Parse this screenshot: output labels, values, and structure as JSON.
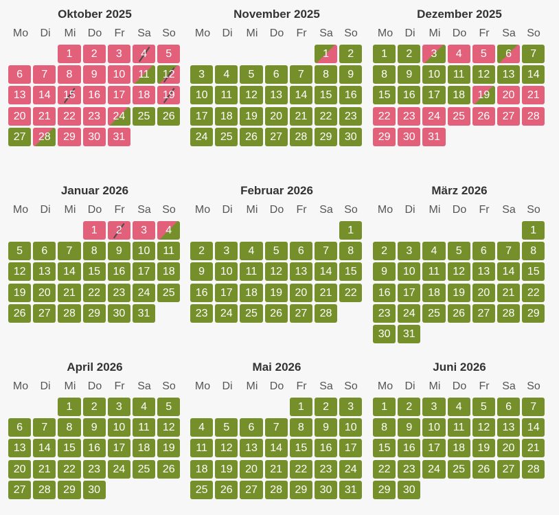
{
  "colors": {
    "free": "#75902a",
    "booked": "#e3607a",
    "background": "#f7f7f7"
  },
  "weekdays": [
    "Mo",
    "Di",
    "Mi",
    "Do",
    "Fr",
    "Sa",
    "So"
  ],
  "months": [
    {
      "title": "Oktober 2025",
      "offset": 2,
      "days": 31,
      "status": {
        "1": "booked",
        "2": "booked",
        "3": "booked",
        "4": "booked-slash",
        "5": "booked",
        "6": "booked",
        "7": "booked",
        "8": "booked",
        "9": "booked",
        "10": "booked",
        "11": "split-out",
        "12": "split-in-slash",
        "13": "booked",
        "14": "booked",
        "15": "booked-slash",
        "16": "booked",
        "17": "booked",
        "18": "booked",
        "19": "booked-slash",
        "20": "booked",
        "21": "booked",
        "22": "booked",
        "23": "booked",
        "24": "split-out",
        "25": "free",
        "26": "free",
        "27": "free",
        "28": "split-out",
        "29": "booked",
        "30": "booked",
        "31": "booked"
      }
    },
    {
      "title": "November 2025",
      "offset": 5,
      "days": 30,
      "status": {
        "1": "split-in"
      }
    },
    {
      "title": "Dezember 2025",
      "offset": 0,
      "days": 31,
      "status": {
        "3": "split-out",
        "4": "booked",
        "5": "booked",
        "6": "split-in",
        "19": "split-out",
        "20": "booked",
        "21": "booked",
        "22": "booked",
        "23": "booked",
        "24": "booked",
        "25": "booked",
        "26": "booked",
        "27": "booked",
        "28": "booked",
        "29": "booked",
        "30": "booked",
        "31": "booked"
      }
    },
    {
      "title": "Januar 2026",
      "offset": 3,
      "days": 31,
      "status": {
        "1": "booked",
        "2": "booked-slash",
        "3": "booked",
        "4": "split-out"
      }
    },
    {
      "title": "Februar 2026",
      "offset": 6,
      "days": 28,
      "status": {}
    },
    {
      "title": "März 2026",
      "offset": 6,
      "days": 31,
      "status": {}
    },
    {
      "title": "April 2026",
      "offset": 2,
      "days": 30,
      "status": {}
    },
    {
      "title": "Mai 2026",
      "offset": 4,
      "days": 31,
      "status": {}
    },
    {
      "title": "Juni 2026",
      "offset": 0,
      "days": 30,
      "status": {}
    }
  ]
}
